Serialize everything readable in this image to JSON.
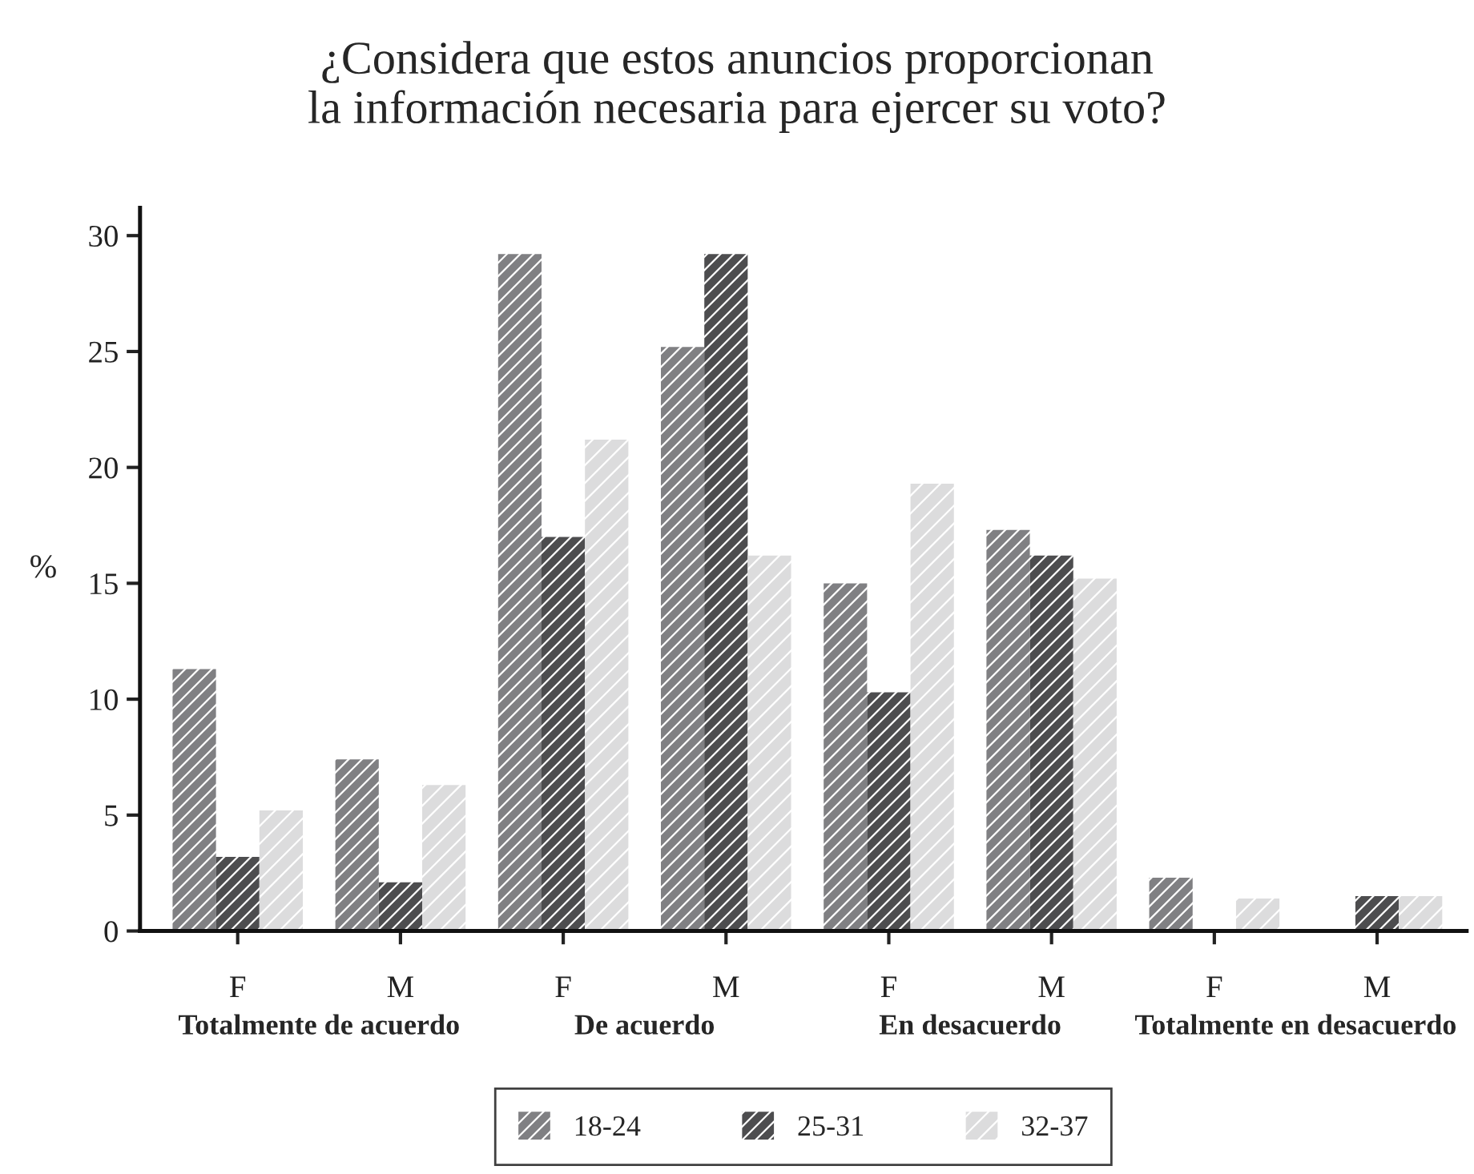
{
  "chart_data": {
    "type": "bar",
    "title": "¿Considera que estos anuncios proporcionan\nla información necesaria para ejercer su voto?",
    "ylabel": "%",
    "categories": [
      "F",
      "M",
      "F",
      "M",
      "F",
      "M",
      "F",
      "M"
    ],
    "annotations": [
      "Totalmente de acuerdo",
      "De acuerdo",
      "En desacuerdo",
      "Totalmente en desacuerdo"
    ],
    "series": [
      {
        "name": "18-24",
        "color": "#808083",
        "values": [
          11.3,
          7.4,
          29.2,
          25.2,
          15.0,
          17.3,
          2.3,
          0
        ]
      },
      {
        "name": "25-31",
        "color": "#4d4d4f",
        "values": [
          3.2,
          2.1,
          17.0,
          29.2,
          10.3,
          16.2,
          0,
          1.5
        ]
      },
      {
        "name": "32-37",
        "color": "#dcdcdd",
        "values": [
          5.2,
          6.3,
          21.2,
          16.2,
          19.3,
          15.2,
          1.4,
          1.5
        ]
      }
    ],
    "ylim": [
      0,
      31.2
    ],
    "yticks": [
      0,
      5,
      10,
      15,
      20,
      25,
      30
    ],
    "grid": false,
    "legend": "bottom"
  }
}
